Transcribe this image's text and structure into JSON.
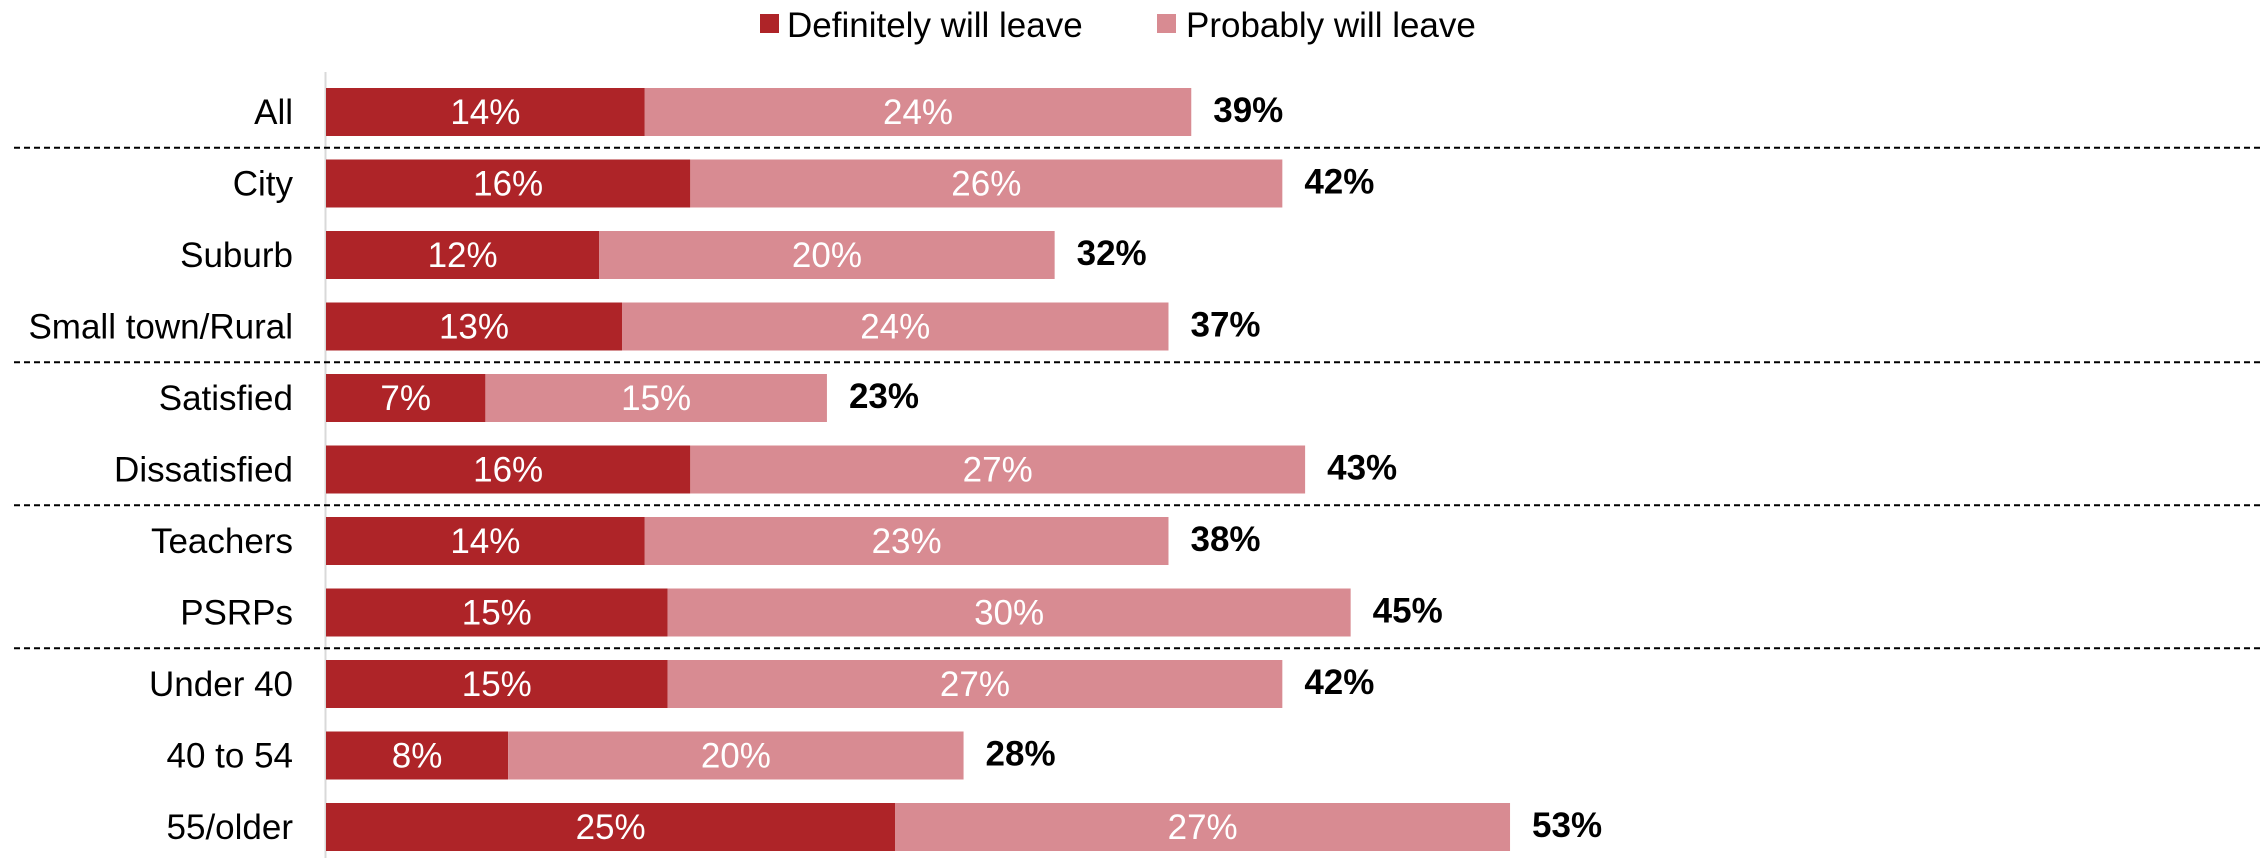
{
  "chart_data": {
    "type": "bar",
    "orientation": "horizontal",
    "stacked": true,
    "categories": [
      "All",
      "City",
      "Suburb",
      "Small town/Rural",
      "Satisfied",
      "Dissatisfied",
      "Teachers",
      "PSRPs",
      "Under 40",
      "40 to 54",
      "55/older"
    ],
    "series": [
      {
        "name": "Definitely will leave",
        "color": "#ae2428",
        "values": [
          14,
          16,
          12,
          13,
          7,
          16,
          14,
          15,
          15,
          8,
          25
        ],
        "labels": [
          "14%",
          "16%",
          "12%",
          "13%",
          "7%",
          "16%",
          "14%",
          "15%",
          "15%",
          "8%",
          "25%"
        ]
      },
      {
        "name": "Probably will leave",
        "color": "#d88b92",
        "values": [
          24,
          26,
          20,
          24,
          15,
          27,
          23,
          30,
          27,
          20,
          27
        ],
        "labels": [
          "24%",
          "26%",
          "20%",
          "24%",
          "15%",
          "27%",
          "23%",
          "30%",
          "27%",
          "20%",
          "27%"
        ]
      }
    ],
    "totals": [
      39,
      42,
      32,
      37,
      23,
      43,
      38,
      45,
      42,
      28,
      53
    ],
    "total_labels": [
      "39%",
      "42%",
      "32%",
      "37%",
      "23%",
      "43%",
      "38%",
      "45%",
      "42%",
      "28%",
      "53%"
    ],
    "group_separators_after": [
      "All",
      "Small town/Rural",
      "Dissatisfied",
      "PSRPs"
    ],
    "xlim": [
      0,
      56
    ],
    "grid": false,
    "legend_position": "top-center",
    "title": "",
    "xlabel": "",
    "ylabel": ""
  }
}
